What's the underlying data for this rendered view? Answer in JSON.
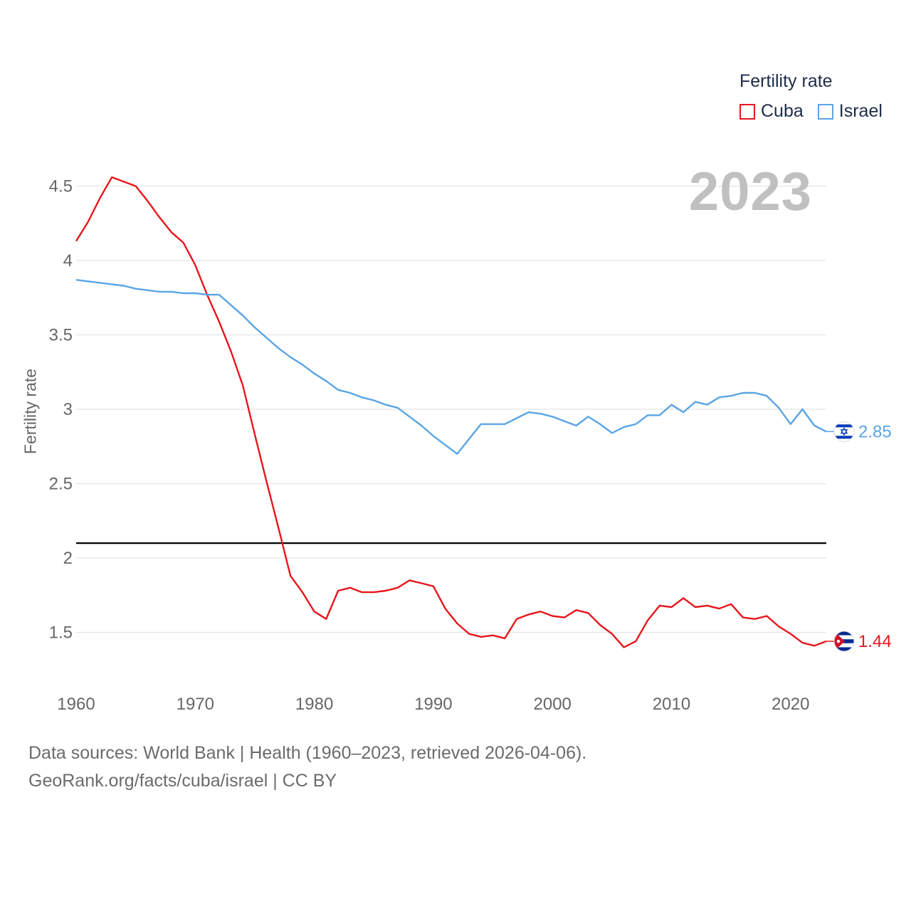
{
  "legend": {
    "title": "Fertility rate",
    "items": [
      {
        "label": "Cuba",
        "color": "#e8161b"
      },
      {
        "label": "Israel",
        "color": "#5aa5e6"
      }
    ]
  },
  "year_label": "2023",
  "footer": {
    "line1": "Data sources: World Bank | Health (1960–2023, retrieved 2026-04-06).",
    "line2": "GeoRank.org/facts/cuba/israel | CC BY"
  },
  "chart_data": {
    "type": "line",
    "title": "Fertility rate",
    "xlabel": "",
    "ylabel": "Fertility rate",
    "xlim": [
      1960,
      2023
    ],
    "ylim": [
      1.3,
      4.6
    ],
    "x_ticks": [
      1960,
      1970,
      1980,
      1990,
      2000,
      2010,
      2020
    ],
    "y_ticks": [
      1.5,
      2,
      2.5,
      3,
      3.5,
      4,
      4.5
    ],
    "y_tick_labels": [
      "1.5",
      "2",
      "2.5",
      "3",
      "3.5",
      "4",
      "4.5"
    ],
    "reference_line": {
      "y": 2.1,
      "color": "#000000"
    },
    "x": [
      1960,
      1961,
      1962,
      1963,
      1964,
      1965,
      1966,
      1967,
      1968,
      1969,
      1970,
      1971,
      1972,
      1973,
      1974,
      1975,
      1976,
      1977,
      1978,
      1979,
      1980,
      1981,
      1982,
      1983,
      1984,
      1985,
      1986,
      1987,
      1988,
      1989,
      1990,
      1991,
      1992,
      1993,
      1994,
      1995,
      1996,
      1997,
      1998,
      1999,
      2000,
      2001,
      2002,
      2003,
      2004,
      2005,
      2006,
      2007,
      2008,
      2009,
      2010,
      2011,
      2012,
      2013,
      2014,
      2015,
      2016,
      2017,
      2018,
      2019,
      2020,
      2021,
      2022,
      2023
    ],
    "series": [
      {
        "name": "Cuba",
        "color": "#e8161b",
        "end_label": "1.44",
        "flag_icon": "cuba-flag-icon",
        "values": [
          4.13,
          4.26,
          4.42,
          4.56,
          4.53,
          4.5,
          4.4,
          4.29,
          4.19,
          4.12,
          3.97,
          3.77,
          3.59,
          3.39,
          3.16,
          2.83,
          2.51,
          2.2,
          1.88,
          1.77,
          1.64,
          1.59,
          1.78,
          1.8,
          1.77,
          1.77,
          1.78,
          1.8,
          1.85,
          1.83,
          1.81,
          1.66,
          1.56,
          1.49,
          1.47,
          1.48,
          1.46,
          1.59,
          1.62,
          1.64,
          1.61,
          1.6,
          1.65,
          1.63,
          1.55,
          1.49,
          1.4,
          1.44,
          1.58,
          1.68,
          1.67,
          1.73,
          1.67,
          1.68,
          1.66,
          1.69,
          1.6,
          1.59,
          1.61,
          1.54,
          1.49,
          1.43,
          1.41,
          1.44
        ]
      },
      {
        "name": "Israel",
        "color": "#5aa5e6",
        "end_label": "2.85",
        "flag_icon": "israel-flag-icon",
        "values": [
          3.87,
          3.86,
          3.85,
          3.84,
          3.83,
          3.81,
          3.8,
          3.79,
          3.79,
          3.78,
          3.78,
          3.77,
          3.77,
          3.7,
          3.63,
          3.55,
          3.48,
          3.41,
          3.35,
          3.3,
          3.24,
          3.19,
          3.13,
          3.11,
          3.08,
          3.06,
          3.03,
          3.01,
          2.95,
          2.89,
          2.82,
          2.76,
          2.7,
          2.8,
          2.9,
          2.9,
          2.9,
          2.94,
          2.98,
          2.97,
          2.95,
          2.92,
          2.89,
          2.95,
          2.9,
          2.84,
          2.88,
          2.9,
          2.96,
          2.96,
          3.03,
          2.98,
          3.05,
          3.03,
          3.08,
          3.09,
          3.11,
          3.11,
          3.09,
          3.01,
          2.9,
          3.0,
          2.89,
          2.85
        ]
      }
    ]
  }
}
